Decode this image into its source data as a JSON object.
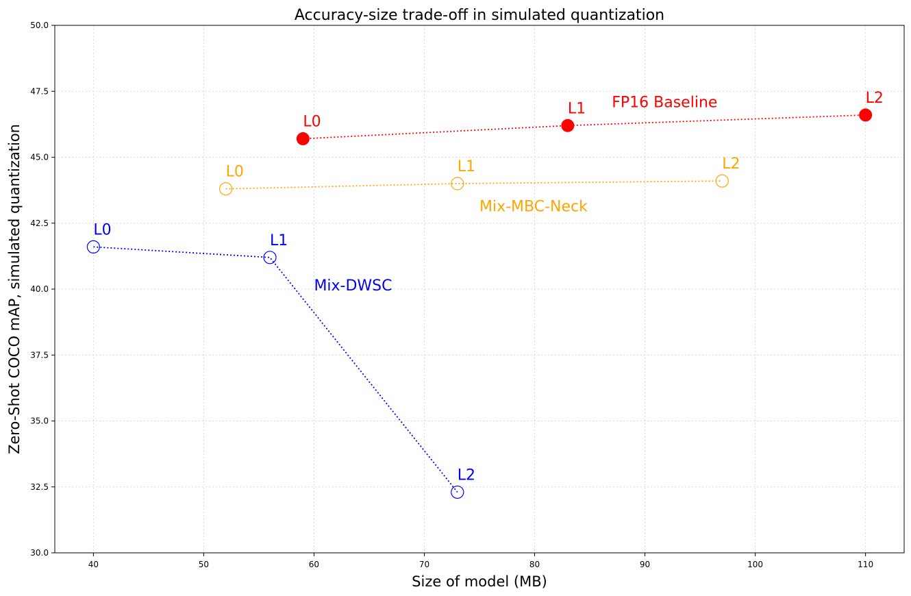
{
  "chart_data": {
    "type": "scatter",
    "title": "Accuracy-size trade-off in simulated quantization",
    "xlabel": "Size of model (MB)",
    "ylabel": "Zero-Shot COCO mAP, simulated quantization",
    "xlim": [
      36.5,
      113.5
    ],
    "ylim": [
      30.0,
      50.0
    ],
    "xticks": [
      40,
      50,
      60,
      70,
      80,
      90,
      100,
      110
    ],
    "yticks": [
      "30.0",
      "32.5",
      "35.0",
      "37.5",
      "40.0",
      "42.5",
      "45.0",
      "47.5",
      "50.0"
    ],
    "grid": true,
    "series": [
      {
        "name": "FP16 Baseline",
        "color": "#ff0000",
        "marker": "filled-circle",
        "line": "dotted",
        "name_at": [
          87,
          46.9
        ],
        "points": [
          {
            "label": "L0",
            "x": 59,
            "y": 45.7
          },
          {
            "label": "L1",
            "x": 83,
            "y": 46.2
          },
          {
            "label": "L2",
            "x": 110,
            "y": 46.6
          }
        ]
      },
      {
        "name": "Mix-MBC-Neck",
        "color": "#ffa500",
        "marker": "open-circle",
        "line": "dotted",
        "name_at": [
          75,
          42.95
        ],
        "points": [
          {
            "label": "L0",
            "x": 52,
            "y": 43.8
          },
          {
            "label": "L1",
            "x": 73,
            "y": 44.0
          },
          {
            "label": "L2",
            "x": 97,
            "y": 44.1
          }
        ]
      },
      {
        "name": "Mix-DWSC",
        "color": "#0000ff",
        "marker": "open-circle",
        "line": "dotted",
        "name_at": [
          60,
          39.95
        ],
        "points": [
          {
            "label": "L0",
            "x": 40,
            "y": 41.6
          },
          {
            "label": "L1",
            "x": 56,
            "y": 41.2
          },
          {
            "label": "L2",
            "x": 73,
            "y": 32.3
          }
        ]
      }
    ]
  }
}
